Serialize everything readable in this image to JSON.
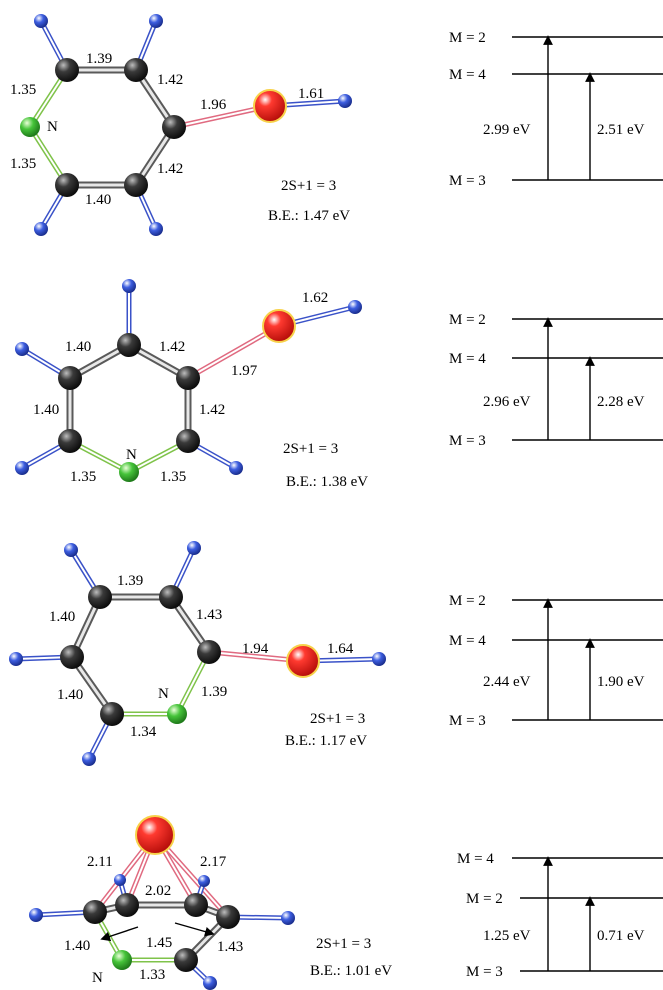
{
  "colors": {
    "carbon": "#2b2b2b",
    "hydrogen": "#2f4fd8",
    "nitrogen": "#45c23a",
    "oxygen": "#e0201c",
    "oxygen_rim": "#f7d24a"
  },
  "panels": [
    {
      "bond_labels": [
        "1.39",
        "1.35",
        "1.42",
        "1.96",
        "1.61",
        "1.35",
        "1.42",
        "1.40"
      ],
      "n_label": "N",
      "spin": "2S+1 = 3",
      "be": "B.E.: 1.47 eV",
      "levels": [
        {
          "label": "M = 2",
          "energy_ev": 2.99
        },
        {
          "label": "M = 4",
          "energy_ev": 2.51
        },
        {
          "label": "M = 3",
          "energy_ev": 0
        }
      ],
      "transitions": [
        "2.99 eV",
        "2.51 eV"
      ]
    },
    {
      "bond_labels": [
        "1.62",
        "1.40",
        "1.42",
        "1.97",
        "1.40",
        "1.42",
        "1.35",
        "1.35"
      ],
      "n_label": "N",
      "spin": "2S+1 = 3",
      "be": "B.E.: 1.38 eV",
      "levels": [
        {
          "label": "M = 2",
          "energy_ev": 2.96
        },
        {
          "label": "M = 4",
          "energy_ev": 2.28
        },
        {
          "label": "M = 3",
          "energy_ev": 0
        }
      ],
      "transitions": [
        "2.96 eV",
        "2.28 eV"
      ]
    },
    {
      "bond_labels": [
        "1.39",
        "1.40",
        "1.43",
        "1.94",
        "1.64",
        "1.40",
        "1.39",
        "1.34"
      ],
      "n_label": "N",
      "spin": "2S+1 = 3",
      "be": "B.E.: 1.17 eV",
      "levels": [
        {
          "label": "M = 2",
          "energy_ev": 2.44
        },
        {
          "label": "M = 4",
          "energy_ev": 1.9
        },
        {
          "label": "M = 3",
          "energy_ev": 0
        }
      ],
      "transitions": [
        "2.44 eV",
        "1.90 eV"
      ]
    },
    {
      "bond_labels": [
        "2.11",
        "2.17",
        "2.02",
        "1.45",
        "1.40",
        "1.43",
        "1.33"
      ],
      "n_label": "N",
      "spin": "2S+1 = 3",
      "be": "B.E.: 1.01 eV",
      "levels": [
        {
          "label": "M = 4",
          "energy_ev": 1.25
        },
        {
          "label": "M = 2",
          "energy_ev": 0.71
        },
        {
          "label": "M = 3",
          "energy_ev": 0
        }
      ],
      "transitions": [
        "1.25 eV",
        "0.71 eV"
      ]
    }
  ]
}
